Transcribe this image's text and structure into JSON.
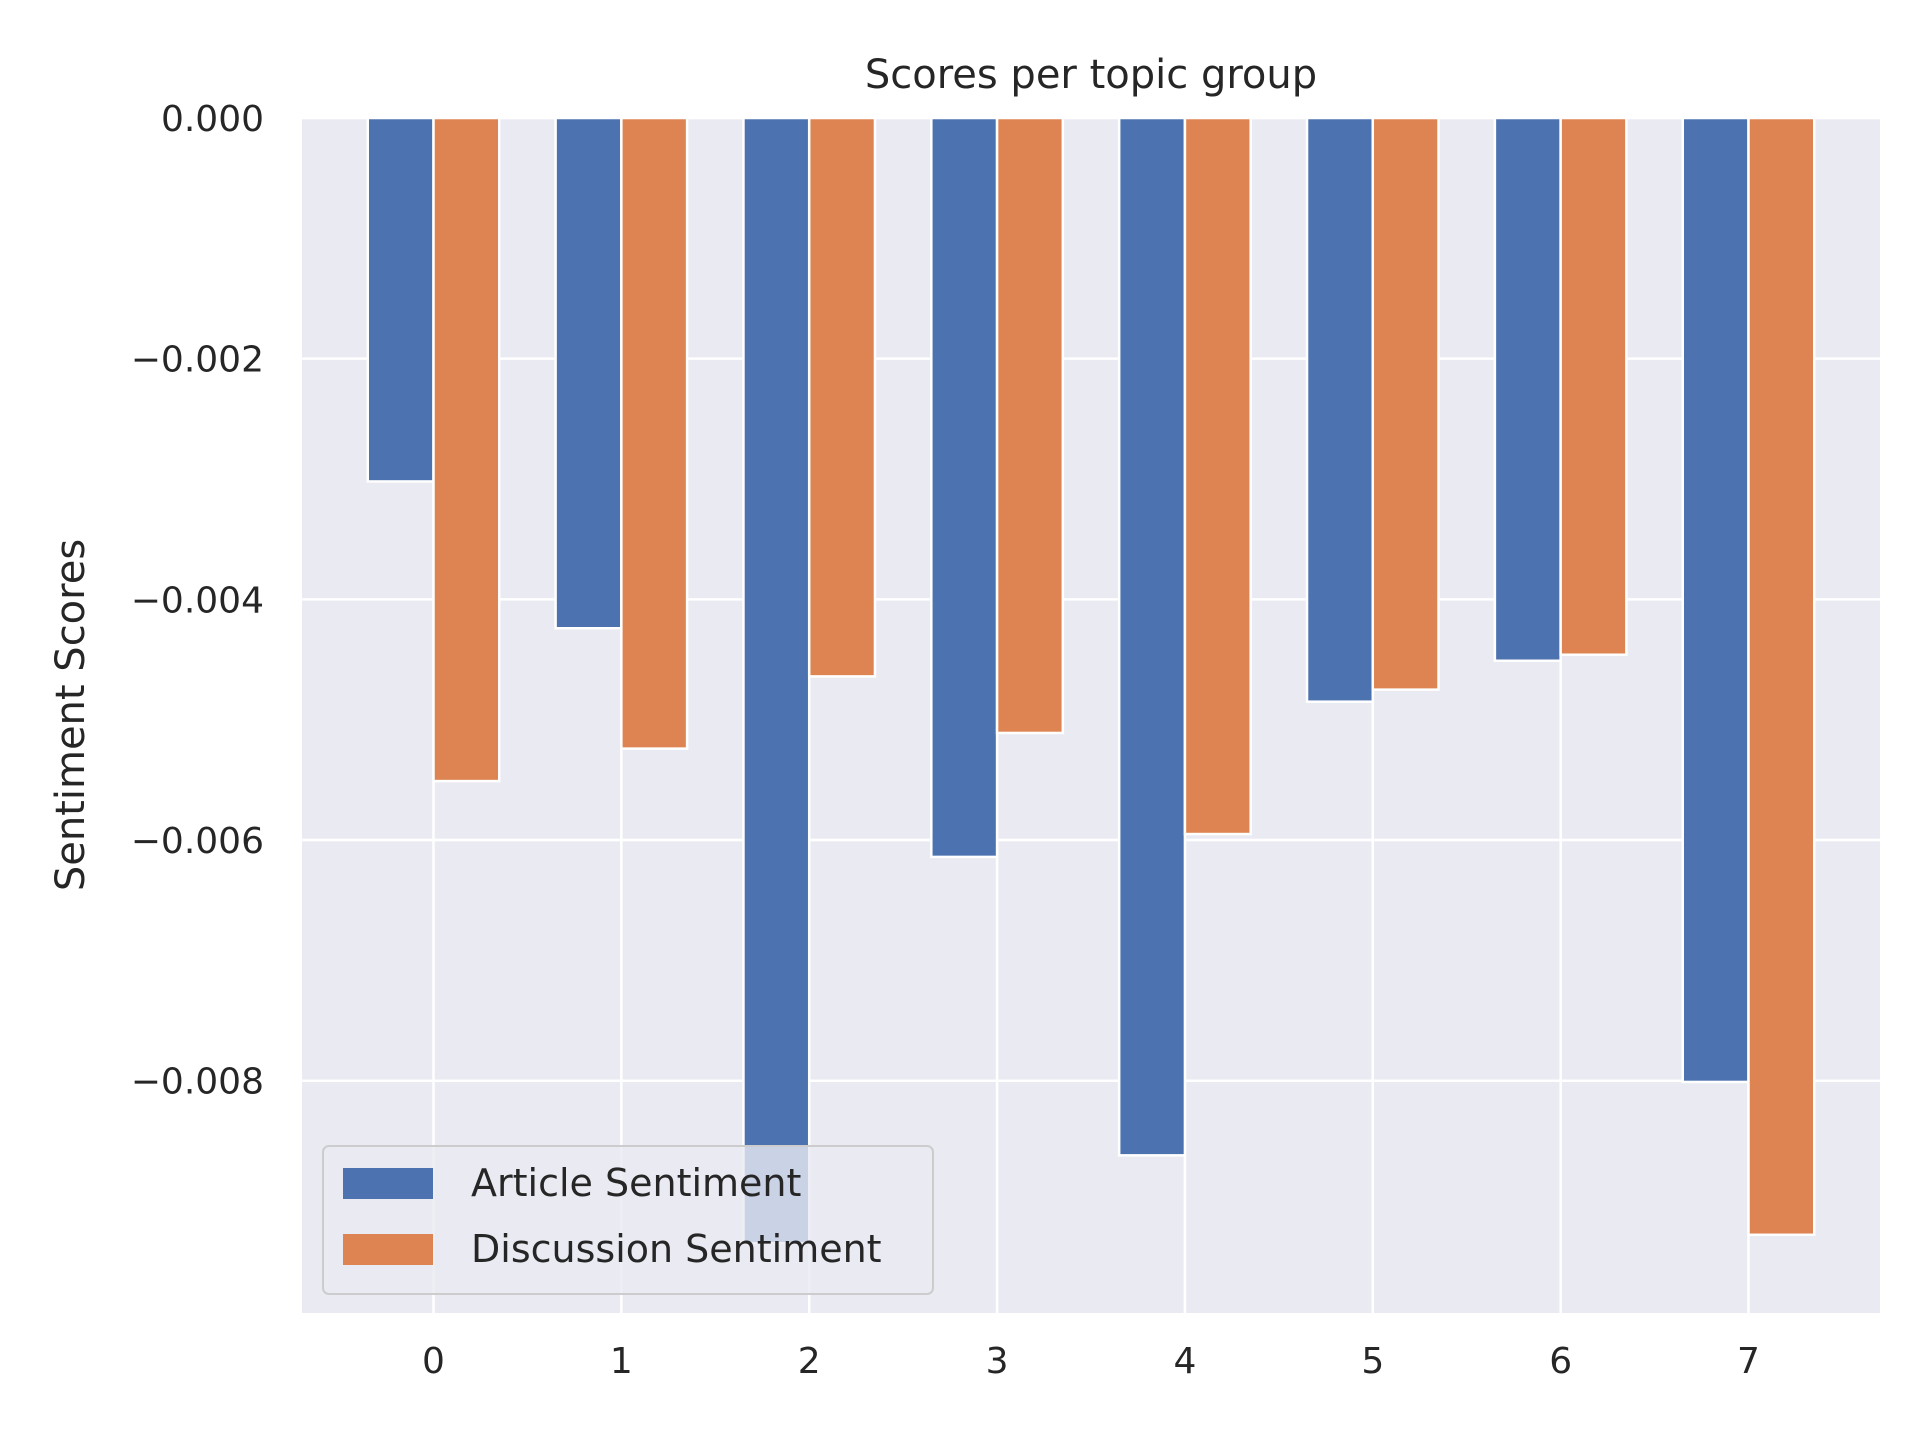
{
  "chart_data": {
    "type": "bar",
    "title": "Scores per topic group",
    "xlabel": "",
    "ylabel": "Sentiment Scores",
    "categories": [
      "0",
      "1",
      "2",
      "3",
      "4",
      "5",
      "6",
      "7"
    ],
    "series": [
      {
        "name": "Article Sentiment",
        "color": "#4C72B0",
        "values": [
          -0.00302,
          -0.00424,
          -0.00935,
          -0.00614,
          -0.00862,
          -0.00485,
          -0.00451,
          -0.00801
        ]
      },
      {
        "name": "Discussion Sentiment",
        "color": "#DD8452",
        "values": [
          -0.00551,
          -0.00524,
          -0.00464,
          -0.00511,
          -0.00595,
          -0.00475,
          -0.00446,
          -0.00928
        ]
      }
    ],
    "ylim": [
      -0.00993,
      0.0
    ],
    "yticks": [
      0.0,
      -0.002,
      -0.004,
      -0.006,
      -0.008
    ],
    "ytick_labels": [
      "0.000",
      "−0.002",
      "−0.004",
      "−0.006",
      "−0.008"
    ],
    "grid": true,
    "legend_position": "lower-left",
    "background_color": "#EAEAF2"
  }
}
